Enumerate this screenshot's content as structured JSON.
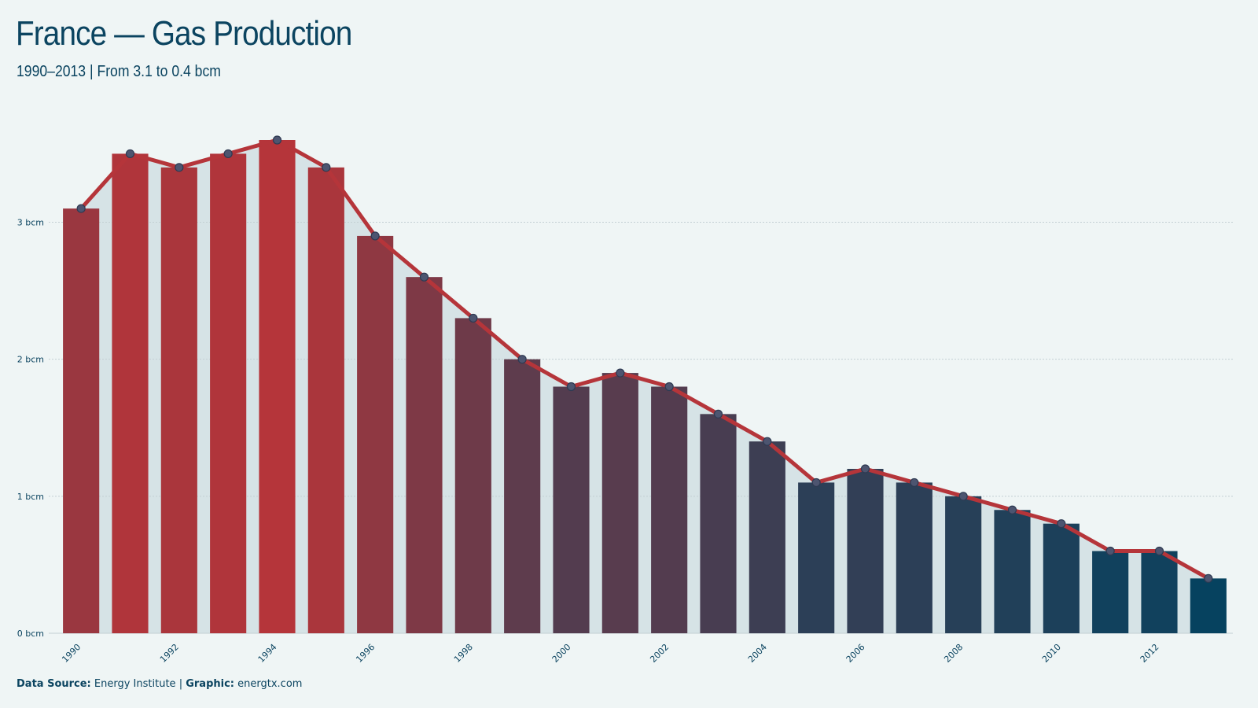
{
  "header": {
    "title": "France — Gas Production",
    "subtitle": "1990–2013 | From 3.1 to 0.4 bcm"
  },
  "footer": {
    "source_label": "Data Source:",
    "source_value": "Energy Institute",
    "separator": "|",
    "graphic_label": "Graphic:",
    "graphic_value": "energtx.com"
  },
  "colors": {
    "background": "#eff5f5",
    "text": "#0b4460",
    "line": "#b5353a",
    "area": "#d6e3e6",
    "bar_high": "#b5353a",
    "bar_low": "#06425f",
    "gridline": "#c3cfd3"
  },
  "chart_data": {
    "type": "bar",
    "title": "France — Gas Production",
    "subtitle": "1990–2013 | From 3.1 to 0.4 bcm",
    "xlabel": "",
    "ylabel": "",
    "ylim": [
      0,
      3.6
    ],
    "y_ticks": [
      0,
      1,
      2,
      3
    ],
    "y_tick_labels": [
      "0 bcm",
      "1 bcm",
      "2 bcm",
      "3 bcm"
    ],
    "x_tick_labels": [
      "1990",
      "1992",
      "1994",
      "1996",
      "1998",
      "2000",
      "2002",
      "2004",
      "2006",
      "2008",
      "2010",
      "2012"
    ],
    "grid": true,
    "categories": [
      "1990",
      "1991",
      "1992",
      "1993",
      "1994",
      "1995",
      "1996",
      "1997",
      "1998",
      "1999",
      "2000",
      "2001",
      "2002",
      "2003",
      "2004",
      "2005",
      "2006",
      "2007",
      "2008",
      "2009",
      "2010",
      "2011",
      "2012",
      "2013"
    ],
    "values": [
      3.1,
      3.5,
      3.4,
      3.5,
      3.6,
      3.4,
      2.9,
      2.6,
      2.3,
      2.0,
      1.8,
      1.9,
      1.8,
      1.6,
      1.4,
      1.1,
      1.2,
      1.1,
      1.0,
      0.9,
      0.8,
      0.6,
      0.6,
      0.4
    ],
    "overlay": "line with markers and shaded area following the same values"
  }
}
